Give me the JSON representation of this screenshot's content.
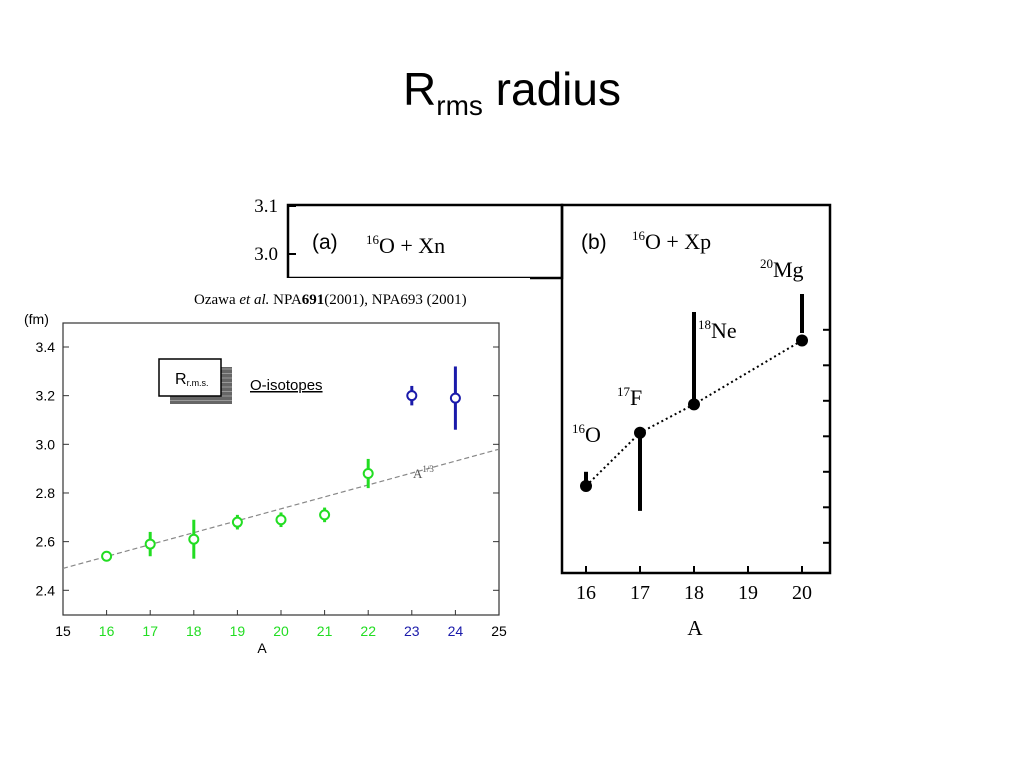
{
  "title": {
    "main": "R",
    "sub": "rms",
    "rest": " radius"
  },
  "citation": {
    "pre": "Ozawa ",
    "etal": "et al.",
    "mid": " NPA",
    "bold": "691",
    "post": "(2001), NPA693 (2001)"
  },
  "colors": {
    "stable": "#22dd22",
    "halo": "#1a1aaa",
    "fit": "#888888",
    "black": "#000000",
    "axis": "#333333"
  },
  "chart_data": [
    {
      "type": "scatter",
      "panel": "left",
      "y_unit": "(fm)",
      "xlabel": "A",
      "xlim": [
        15,
        25
      ],
      "ylim": [
        2.3,
        3.5
      ],
      "x_ticks": [
        15,
        16,
        17,
        18,
        19,
        20,
        21,
        22,
        23,
        24,
        25
      ],
      "y_ticks": [
        2.4,
        2.6,
        2.8,
        3.0,
        3.2,
        3.4
      ],
      "inset_label": {
        "main": "R",
        "sub": "r.m.s."
      },
      "series_label": "O-isotopes",
      "fit_label": {
        "main": "A",
        "sup": "1/3"
      },
      "fit_line": {
        "x": [
          15,
          25
        ],
        "y": [
          2.49,
          2.98
        ]
      },
      "points": [
        {
          "x": 16,
          "y": 2.54,
          "lo": 2.52,
          "hi": 2.56,
          "group": "stable"
        },
        {
          "x": 17,
          "y": 2.59,
          "lo": 2.54,
          "hi": 2.64,
          "group": "stable"
        },
        {
          "x": 18,
          "y": 2.61,
          "lo": 2.53,
          "hi": 2.69,
          "group": "stable"
        },
        {
          "x": 19,
          "y": 2.68,
          "lo": 2.65,
          "hi": 2.71,
          "group": "stable"
        },
        {
          "x": 20,
          "y": 2.69,
          "lo": 2.66,
          "hi": 2.72,
          "group": "stable"
        },
        {
          "x": 21,
          "y": 2.71,
          "lo": 2.68,
          "hi": 2.74,
          "group": "stable"
        },
        {
          "x": 22,
          "y": 2.88,
          "lo": 2.82,
          "hi": 2.94,
          "group": "stable"
        },
        {
          "x": 23,
          "y": 3.2,
          "lo": 3.16,
          "hi": 3.24,
          "group": "halo"
        },
        {
          "x": 24,
          "y": 3.19,
          "lo": 3.06,
          "hi": 3.32,
          "group": "halo"
        }
      ]
    },
    {
      "type": "scatter",
      "panel": "a",
      "panel_label": "(a)",
      "reaction": {
        "sup": "16",
        "text": "O + Xn"
      },
      "y_ticks": [
        3.1,
        3.0
      ],
      "ylim_visible": [
        2.94,
        3.12
      ]
    },
    {
      "type": "scatter",
      "panel": "b",
      "panel_label": "(b)",
      "reaction": {
        "sup": "16",
        "text": "O + Xp"
      },
      "xlabel": "A",
      "xlim": [
        15.5,
        20.5
      ],
      "ylim": [
        2.3,
        3.1
      ],
      "x_ticks": [
        16,
        17,
        18,
        19,
        20
      ],
      "y_minor_ticks": [
        2.4,
        2.5,
        2.6,
        2.7,
        2.8,
        2.9,
        3.0
      ],
      "points": [
        {
          "x": 16,
          "y": 2.56,
          "lo": 2.56,
          "hi": 2.6,
          "label_sup": "16",
          "label": "O"
        },
        {
          "x": 17,
          "y": 2.71,
          "lo": 2.49,
          "hi": 2.71,
          "label_sup": "17",
          "label": "F"
        },
        {
          "x": 18,
          "y": 2.79,
          "lo": 2.79,
          "hi": 3.05,
          "label_sup": "18",
          "label": "Ne"
        },
        {
          "x": 20,
          "y": 2.97,
          "lo": 2.97,
          "hi": 2.97,
          "label_sup": "20",
          "label": "Mg",
          "bar": [
            3.05,
            3.14
          ]
        }
      ]
    }
  ]
}
